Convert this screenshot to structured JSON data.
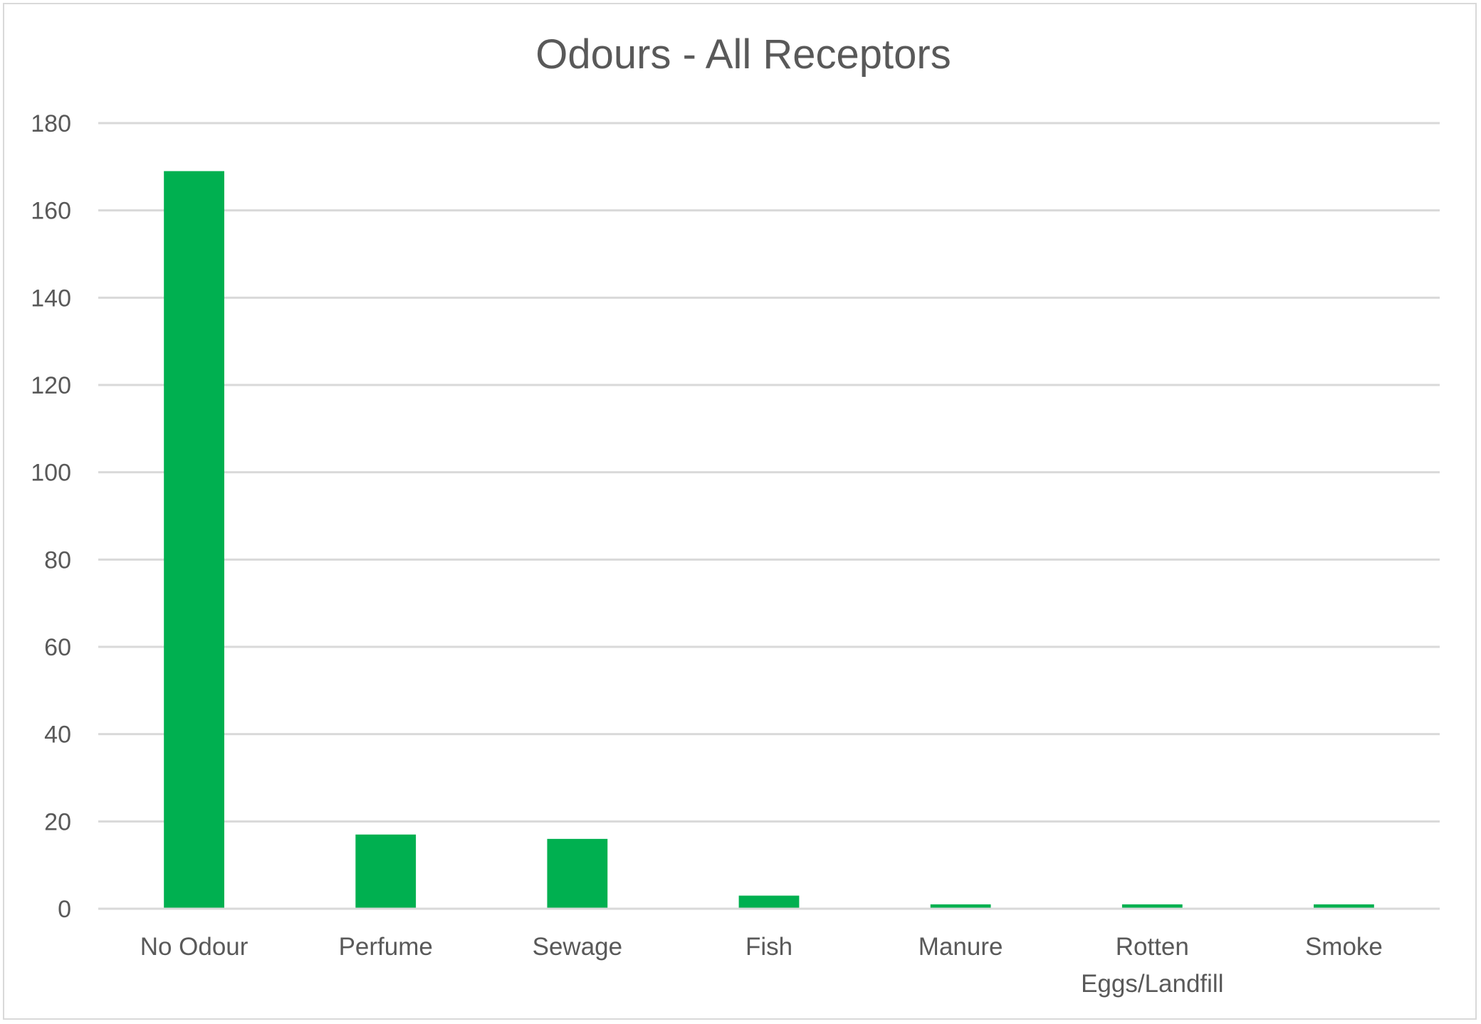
{
  "chart_data": {
    "type": "bar",
    "title": "Odours - All Receptors",
    "xlabel": "",
    "ylabel": "",
    "categories": [
      "No Odour",
      "Perfume",
      "Sewage",
      "Fish",
      "Manure",
      "Rotten Eggs/Landfill",
      "Smoke"
    ],
    "category_lines": [
      [
        "No Odour"
      ],
      [
        "Perfume"
      ],
      [
        "Sewage"
      ],
      [
        "Fish"
      ],
      [
        "Manure"
      ],
      [
        "Rotten",
        "Eggs/Landfill"
      ],
      [
        "Smoke"
      ]
    ],
    "values": [
      169,
      17,
      16,
      3,
      1,
      1,
      1
    ],
    "ylim": [
      0,
      180
    ],
    "yticks": [
      0,
      20,
      40,
      60,
      80,
      100,
      120,
      140,
      160,
      180
    ],
    "grid": true,
    "legend": "none",
    "bar_color": "#00b050",
    "gridline_color": "#d9d9d9",
    "text_color": "#595959"
  }
}
